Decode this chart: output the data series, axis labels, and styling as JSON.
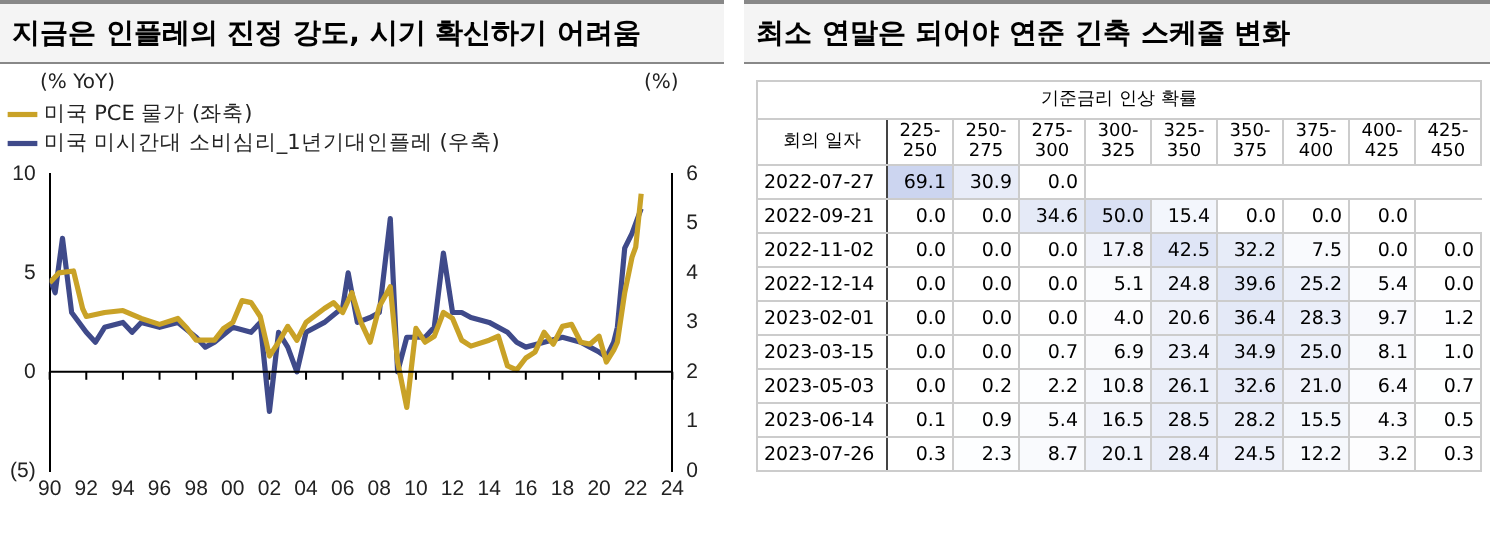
{
  "chart_data": [
    {
      "type": "line",
      "title": "지금은 인플레의 진정 강도, 시기 확신하기 어려움",
      "ylabel": "(% YoY)",
      "y2label": "(%)",
      "legend": "top left",
      "grid": false,
      "marker": "none",
      "line_style": "solid",
      "xlim": [
        1990,
        2024
      ],
      "xticks": [
        {
          "value": 1990,
          "label": "90"
        },
        {
          "value": 1992,
          "label": "92"
        },
        {
          "value": 1994,
          "label": "94"
        },
        {
          "value": 1996,
          "label": "96"
        },
        {
          "value": 1998,
          "label": "98"
        },
        {
          "value": 2000,
          "label": "00"
        },
        {
          "value": 2002,
          "label": "02"
        },
        {
          "value": 2004,
          "label": "04"
        },
        {
          "value": 2006,
          "label": "06"
        },
        {
          "value": 2008,
          "label": "08"
        },
        {
          "value": 2010,
          "label": "10"
        },
        {
          "value": 2012,
          "label": "12"
        },
        {
          "value": 2014,
          "label": "14"
        },
        {
          "value": 2016,
          "label": "16"
        },
        {
          "value": 2018,
          "label": "18"
        },
        {
          "value": 2020,
          "label": "20"
        },
        {
          "value": 2022,
          "label": "22"
        },
        {
          "value": 2024,
          "label": "24"
        }
      ],
      "ylim": [
        -5,
        10
      ],
      "yticks": [
        {
          "value": -5,
          "label": "(5)"
        },
        0,
        5,
        10
      ],
      "y2lim": [
        0,
        6
      ],
      "y2ticks": [
        0,
        1,
        2,
        3,
        4,
        5,
        6
      ],
      "ref_lines": [
        {
          "axis": "y",
          "value": 0,
          "color": "#000000"
        }
      ],
      "series": [
        {
          "name": "미국 PCE 물가 (좌축)",
          "color": "#c9a227",
          "x": [
            1990,
            1990.5,
            1991.3,
            1991.8,
            1992,
            1993,
            1994,
            1995,
            1996,
            1997,
            1997.5,
            1998,
            1999,
            1999.5,
            2000,
            2000.5,
            2001,
            2001.5,
            2002,
            2002.5,
            2003,
            2003.5,
            2004,
            2005,
            2005.5,
            2006,
            2006.5,
            2007,
            2007.5,
            2008,
            2008.6,
            2009,
            2009.5,
            2010,
            2010.5,
            2011,
            2011.5,
            2012,
            2012.5,
            2013,
            2014,
            2014.5,
            2015,
            2015.5,
            2016,
            2016.5,
            2017,
            2017.5,
            2018,
            2018.5,
            2019,
            2019.5,
            2020,
            2020.4,
            2020.8,
            2021,
            2021.4,
            2021.8,
            2022,
            2022.3
          ],
          "values": [
            4.5,
            5.0,
            5.1,
            3.2,
            2.8,
            3.0,
            3.1,
            2.7,
            2.4,
            2.7,
            2.2,
            1.6,
            1.6,
            2.2,
            2.5,
            3.6,
            3.5,
            2.8,
            0.8,
            1.5,
            2.3,
            1.6,
            2.5,
            3.2,
            3.5,
            3.0,
            4.0,
            2.5,
            1.5,
            3.3,
            4.3,
            0.5,
            -1.8,
            2.2,
            1.5,
            1.8,
            3.0,
            2.7,
            1.6,
            1.3,
            1.6,
            1.8,
            0.3,
            0.1,
            0.7,
            1.0,
            2.0,
            1.4,
            2.3,
            2.4,
            1.5,
            1.4,
            1.8,
            0.5,
            1.1,
            1.5,
            4.0,
            5.8,
            6.3,
            9.0
          ]
        },
        {
          "name": "미국 미시간대 소비심리_1년기대인플레 (우축)",
          "color": "#3f4a8a",
          "axis": "y2",
          "x": [
            1990,
            1990.3,
            1990.7,
            1991.2,
            1992,
            1992.5,
            1993,
            1994,
            1994.5,
            1995,
            1996,
            1997,
            1998,
            1998.5,
            1999,
            2000,
            2001,
            2001.5,
            2002,
            2002.5,
            2003,
            2003.5,
            2004,
            2005,
            2006,
            2006.3,
            2006.8,
            2007.5,
            2008,
            2008.6,
            2009,
            2009.5,
            2010,
            2010.5,
            2011,
            2011.5,
            2012,
            2012.5,
            2013,
            2014,
            2014.5,
            2015,
            2015.5,
            2016,
            2017,
            2018,
            2019,
            2019.5,
            2020,
            2020.4,
            2020.8,
            2021,
            2021.4,
            2021.8,
            2022.3
          ],
          "values": [
            3.9,
            3.6,
            4.7,
            3.2,
            2.8,
            2.6,
            2.9,
            3.0,
            2.8,
            3.0,
            2.9,
            3.0,
            2.7,
            2.5,
            2.6,
            2.9,
            2.8,
            3.0,
            1.2,
            2.8,
            2.5,
            2.0,
            2.8,
            3.0,
            3.3,
            4.0,
            3.0,
            3.1,
            3.2,
            5.1,
            2.0,
            2.7,
            2.7,
            2.7,
            2.9,
            4.4,
            3.2,
            3.2,
            3.1,
            3.0,
            2.9,
            2.8,
            2.6,
            2.5,
            2.6,
            2.7,
            2.6,
            2.5,
            2.4,
            2.3,
            2.6,
            2.9,
            4.5,
            4.8,
            5.3
          ]
        }
      ]
    },
    {
      "type": "heatmap",
      "title": "최소 연말은 되어야 연준 긴축 스케줄 변화",
      "subtitle": "기준금리 인상 확률",
      "ylabel": "회의 일자",
      "categories": [
        "225-250",
        "250-275",
        "275-300",
        "300-325",
        "325-350",
        "350-375",
        "375-400",
        "400-425",
        "425-450"
      ],
      "y_categories": [
        "2022-07-27",
        "2022-09-21",
        "2022-11-02",
        "2022-12-14",
        "2023-02-01",
        "2023-03-15",
        "2023-05-03",
        "2023-06-14",
        "2023-07-26"
      ],
      "cells": [
        [
          69.1,
          30.9,
          0,
          null,
          null,
          null,
          null,
          null,
          null
        ],
        [
          0,
          0,
          34.6,
          50.0,
          15.4,
          0,
          0,
          0,
          null
        ],
        [
          0,
          0,
          0,
          17.8,
          42.5,
          32.2,
          7.5,
          0,
          0
        ],
        [
          0,
          0,
          0,
          5.1,
          24.8,
          39.6,
          25.2,
          5.4,
          0
        ],
        [
          0,
          0,
          0,
          4.0,
          20.6,
          36.4,
          28.3,
          9.7,
          1.2
        ],
        [
          0,
          0,
          0.7,
          6.9,
          23.4,
          34.9,
          25.0,
          8.1,
          1.0
        ],
        [
          0,
          0.2,
          2.2,
          10.8,
          26.1,
          32.6,
          21.0,
          6.4,
          0.7
        ],
        [
          0.1,
          0.9,
          5.4,
          16.5,
          28.5,
          28.2,
          15.5,
          4.3,
          0.5
        ],
        [
          0.3,
          2.3,
          8.7,
          20.1,
          28.4,
          24.5,
          12.2,
          3.2,
          0.3
        ]
      ],
      "cell_labels": [
        [
          "69.1",
          "30.9",
          "0.0",
          null,
          null,
          null,
          null,
          null,
          null
        ],
        [
          "0.0",
          "0.0",
          "34.6",
          "50.0",
          "15.4",
          "0.0",
          "0.0",
          "0.0",
          null
        ],
        [
          "0.0",
          "0.0",
          "0.0",
          "17.8",
          "42.5",
          "32.2",
          "7.5",
          "0.0",
          "0.0"
        ],
        [
          "0.0",
          "0.0",
          "0.0",
          "5.1",
          "24.8",
          "39.6",
          "25.2",
          "5.4",
          "0.0"
        ],
        [
          "0.0",
          "0.0",
          "0.0",
          "4.0",
          "20.6",
          "36.4",
          "28.3",
          "9.7",
          "1.2"
        ],
        [
          "0.0",
          "0.0",
          "0.7",
          "6.9",
          "23.4",
          "34.9",
          "25.0",
          "8.1",
          "1.0"
        ],
        [
          "0.0",
          "0.2",
          "2.2",
          "10.8",
          "26.1",
          "32.6",
          "21.0",
          "6.4",
          "0.7"
        ],
        [
          "0.1",
          "0.9",
          "5.4",
          "16.5",
          "28.5",
          "28.2",
          "15.5",
          "4.3",
          "0.5"
        ],
        [
          "0.3",
          "2.3",
          "8.7",
          "20.1",
          "28.4",
          "24.5",
          "12.2",
          "3.2",
          "0.3"
        ]
      ]
    }
  ]
}
